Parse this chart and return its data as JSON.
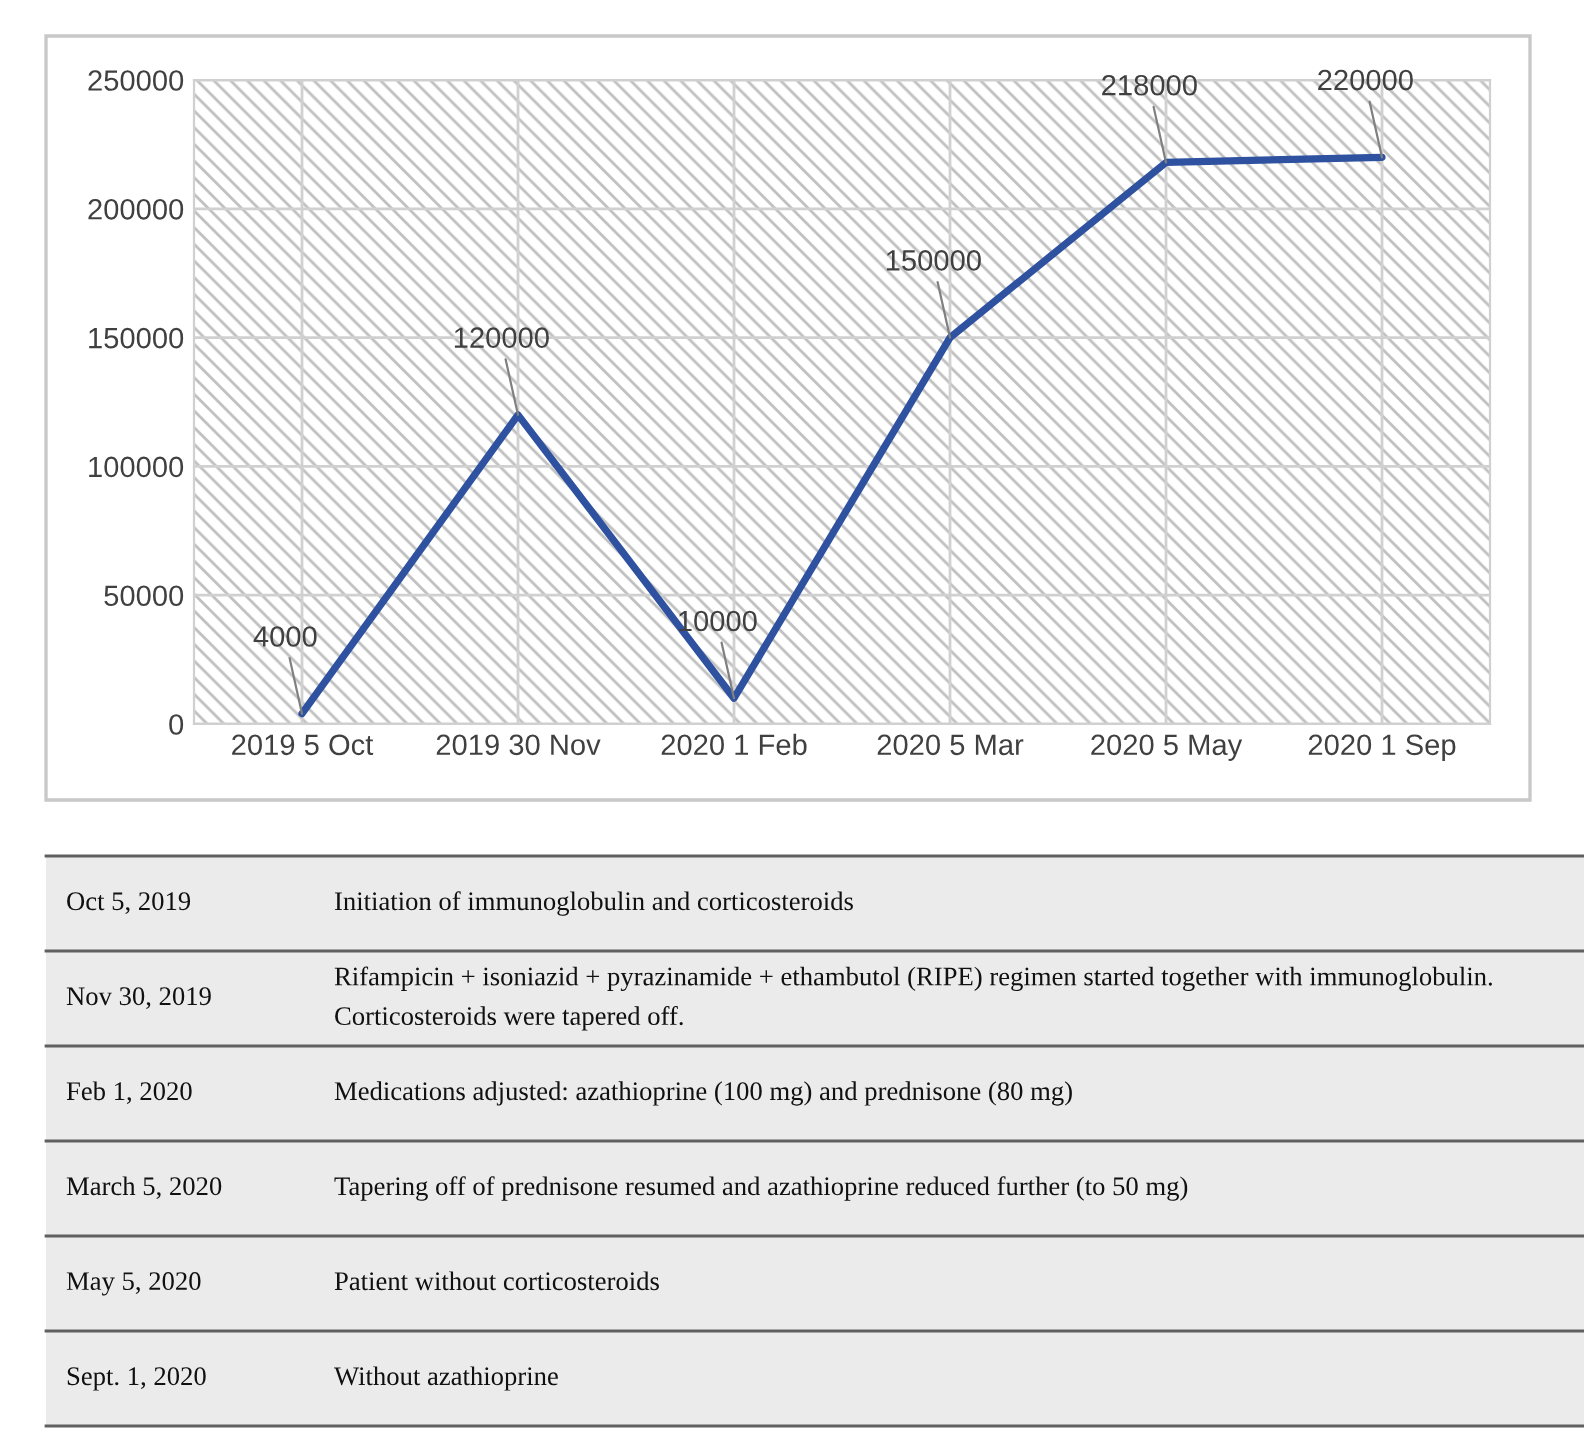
{
  "chart_data": {
    "type": "line",
    "categories": [
      "2019 5 Oct",
      "2019 30 Nov",
      "2020 1 Feb",
      "2020 5 Mar",
      "2020 5 May",
      "2020 1 Sep"
    ],
    "series": [
      {
        "color": "#2f52a0",
        "values": [
          4000,
          120000,
          10000,
          150000,
          218000,
          220000
        ]
      }
    ],
    "ylim": [
      0,
      250000
    ],
    "yticks": [
      0,
      50000,
      100000,
      150000,
      200000,
      250000
    ],
    "grid": true,
    "data_labels": true,
    "marker": "none",
    "line_style": "solid",
    "annotations": [
      "Oct 5, 2019",
      "Initiation of immunoglobulin and corticosteroids",
      "Nov 30, 2019",
      "Rifampicin + isoniazid + pyrazinamide + ethambutol (RIPE) regimen started together with immunoglobulin. Corticosteroids were tapered off.",
      "Feb 1, 2020",
      "Medications adjusted: azathioprine (100 mg) and prednisone (80 mg)",
      "March 5, 2020",
      "Tapering off of prednisone resumed and azathioprine reduced further (to 50 mg)",
      "May 5, 2020",
      "Patient without corticosteroids",
      "Sept. 1, 2020",
      "Without azathioprine"
    ]
  }
}
